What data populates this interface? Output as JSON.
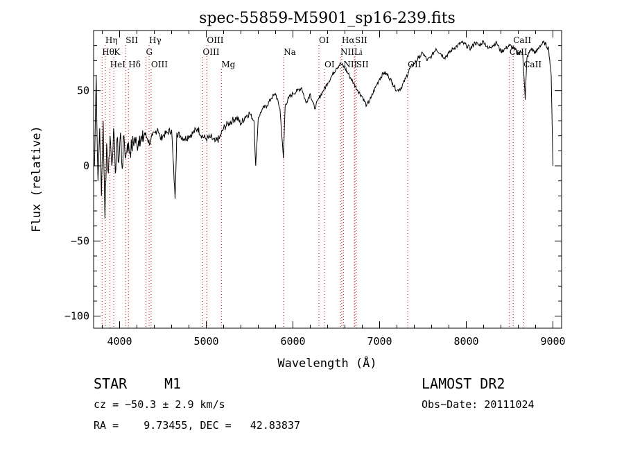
{
  "chart_data": {
    "type": "line",
    "title": "spec-55859-M5901_sp16-239.fits",
    "xlabel": "Wavelength (Å)",
    "ylabel": "Flux (relative)",
    "xlim": [
      3700,
      9100
    ],
    "ylim": [
      -108,
      90
    ],
    "x_ticks": [
      4000,
      5000,
      6000,
      7000,
      8000,
      9000
    ],
    "y_ticks": [
      50,
      0,
      -50,
      -100
    ],
    "x_tick_labels": [
      "4000",
      "5000",
      "6000",
      "7000",
      "8000",
      "9000"
    ],
    "y_tick_labels": [
      "50",
      "0",
      "−50",
      "−100"
    ],
    "grid": false,
    "line_color": "#000000",
    "marker_color": "#cc0000",
    "spectrum": {
      "x": [
        3710,
        3730,
        3750,
        3770,
        3790,
        3810,
        3830,
        3850,
        3870,
        3890,
        3910,
        3930,
        3950,
        3970,
        3990,
        4010,
        4030,
        4050,
        4070,
        4090,
        4110,
        4140,
        4170,
        4200,
        4230,
        4260,
        4290,
        4320,
        4350,
        4380,
        4410,
        4440,
        4470,
        4500,
        4550,
        4600,
        4640,
        4660,
        4700,
        4750,
        4800,
        4850,
        4900,
        4950,
        5000,
        5050,
        5100,
        5150,
        5200,
        5250,
        5300,
        5350,
        5400,
        5450,
        5500,
        5550,
        5570,
        5600,
        5650,
        5700,
        5750,
        5800,
        5850,
        5890,
        5910,
        5950,
        6000,
        6050,
        6100,
        6150,
        6200,
        6250,
        6300,
        6350,
        6400,
        6450,
        6500,
        6550,
        6600,
        6650,
        6700,
        6750,
        6800,
        6850,
        6900,
        6950,
        7000,
        7050,
        7100,
        7150,
        7200,
        7250,
        7300,
        7350,
        7400,
        7450,
        7500,
        7550,
        7600,
        7650,
        7700,
        7750,
        7800,
        7850,
        7900,
        7950,
        8000,
        8050,
        8100,
        8150,
        8200,
        8250,
        8300,
        8350,
        8400,
        8450,
        8500,
        8550,
        8600,
        8650,
        8680,
        8700,
        8750,
        8800,
        8850,
        8900,
        8950,
        8980,
        9000
      ],
      "y": [
        0,
        60,
        -10,
        25,
        -20,
        30,
        -35,
        15,
        -5,
        20,
        0,
        25,
        -5,
        18,
        2,
        22,
        -2,
        20,
        5,
        15,
        10,
        12,
        18,
        14,
        20,
        16,
        22,
        18,
        15,
        20,
        22,
        25,
        18,
        20,
        22,
        24,
        -22,
        22,
        20,
        18,
        20,
        22,
        25,
        20,
        18,
        19,
        16,
        18,
        25,
        28,
        30,
        32,
        28,
        33,
        35,
        30,
        0,
        32,
        38,
        40,
        45,
        48,
        38,
        5,
        40,
        45,
        48,
        50,
        52,
        42,
        48,
        38,
        45,
        50,
        55,
        60,
        65,
        68,
        65,
        60,
        55,
        50,
        46,
        40,
        45,
        52,
        58,
        62,
        60,
        55,
        50,
        52,
        58,
        65,
        68,
        72,
        75,
        70,
        73,
        78,
        75,
        72,
        75,
        78,
        80,
        82,
        80,
        78,
        82,
        80,
        83,
        78,
        80,
        82,
        76,
        78,
        80,
        78,
        75,
        76,
        44,
        72,
        78,
        75,
        80,
        82,
        78,
        60,
        0
      ]
    },
    "line_markers": [
      {
        "label": "Hη",
        "x": 3835,
        "row": 1
      },
      {
        "label": "Hθ",
        "x": 3798,
        "row": 2
      },
      {
        "label": "K",
        "x": 3934,
        "row": 2
      },
      {
        "label": "HeI",
        "x": 3889,
        "row": 3
      },
      {
        "label": "SII",
        "x": 4070,
        "row": 1
      },
      {
        "label": "Hδ",
        "x": 4102,
        "row": 3
      },
      {
        "label": "Hγ",
        "x": 4340,
        "row": 1
      },
      {
        "label": "G",
        "x": 4304,
        "row": 2
      },
      {
        "label": "OIII",
        "x": 4363,
        "row": 3
      },
      {
        "label": "OIII",
        "x": 5007,
        "row": 1
      },
      {
        "label": "OIII",
        "x": 4959,
        "row": 2
      },
      {
        "label": "Mg",
        "x": 5175,
        "row": 3
      },
      {
        "label": "Na",
        "x": 5893,
        "row": 2
      },
      {
        "label": "OI",
        "x": 6300,
        "row": 1
      },
      {
        "label": "OI",
        "x": 6364,
        "row": 3
      },
      {
        "label": "Hα",
        "x": 6563,
        "row": 1
      },
      {
        "label": "SII",
        "x": 6716,
        "row": 1
      },
      {
        "label": "NII",
        "x": 6548,
        "row": 2
      },
      {
        "label": "Li",
        "x": 6708,
        "row": 2
      },
      {
        "label": "NII",
        "x": 6583,
        "row": 3
      },
      {
        "label": "SII",
        "x": 6731,
        "row": 3
      },
      {
        "label": "OII",
        "x": 7325,
        "row": 3
      },
      {
        "label": "CaII",
        "x": 8542,
        "row": 1
      },
      {
        "label": "CaII",
        "x": 8498,
        "row": 2
      },
      {
        "label": "CaII",
        "x": 8662,
        "row": 3
      }
    ]
  },
  "info": {
    "object_class": "STAR",
    "subclass": "M1",
    "survey": "LAMOST DR2",
    "cz": "cz = −50.3 ± 2.9 km/s",
    "obs_date": "Obs−Date: 20111024",
    "coords": "RA =    9.73455, DEC =   42.83837"
  }
}
